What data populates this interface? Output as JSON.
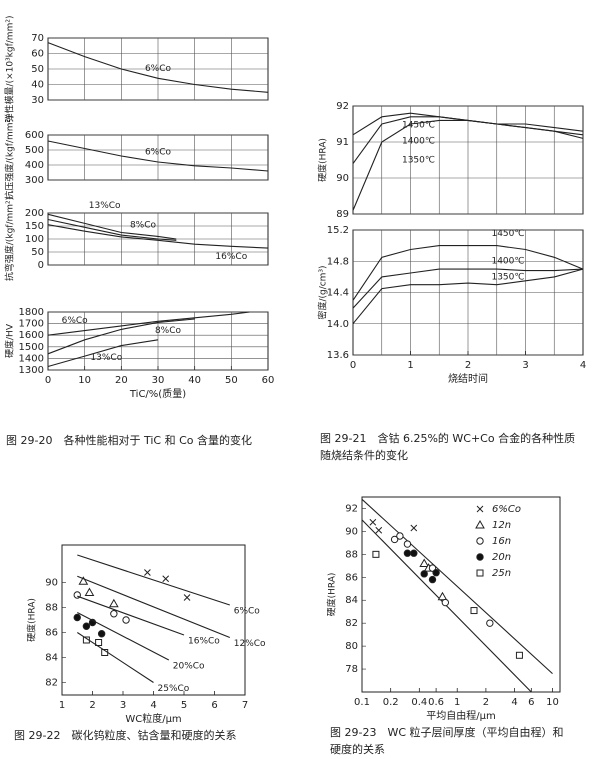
{
  "chart_data": [
    {
      "type": "line",
      "ylabel": "弹性模量/(×10³kgf/mm²)",
      "xlim": [
        0,
        60
      ],
      "ylim": [
        30,
        70
      ],
      "yticks": [
        30,
        40,
        50,
        60,
        70
      ],
      "grid": true,
      "series": [
        {
          "name": "6%Co",
          "color": "#222",
          "x": [
            0,
            10,
            20,
            30,
            40,
            50,
            60
          ],
          "values": [
            67,
            58,
            50,
            44,
            40,
            37,
            35
          ]
        }
      ]
    },
    {
      "type": "line",
      "ylabel": "抗压强度/(kgf/mm²)",
      "xlim": [
        0,
        60
      ],
      "ylim": [
        300,
        600
      ],
      "yticks": [
        300,
        400,
        500,
        600
      ],
      "grid": true,
      "series": [
        {
          "name": "6%Co",
          "color": "#222",
          "x": [
            0,
            10,
            20,
            30,
            40,
            50,
            60
          ],
          "values": [
            560,
            510,
            460,
            420,
            395,
            380,
            360
          ]
        }
      ]
    },
    {
      "type": "line",
      "ylabel": "抗弯强度/(kgf/mm²)",
      "xlim": [
        0,
        60
      ],
      "ylim": [
        0,
        200
      ],
      "yticks": [
        0,
        50,
        100,
        150,
        200
      ],
      "grid": true,
      "series": [
        {
          "name": "13%Co",
          "color": "#222",
          "x": [
            0,
            10,
            20,
            30,
            35
          ],
          "values": [
            195,
            160,
            125,
            110,
            100
          ]
        },
        {
          "name": "8%Co",
          "color": "#222",
          "x": [
            0,
            10,
            20,
            30,
            35
          ],
          "values": [
            175,
            145,
            115,
            100,
            95
          ]
        },
        {
          "name": "16%Co",
          "color": "#222",
          "x": [
            0,
            10,
            20,
            30,
            40,
            50,
            60
          ],
          "values": [
            155,
            130,
            108,
            95,
            80,
            72,
            65
          ]
        }
      ]
    },
    {
      "type": "line",
      "ylabel": "硬度/HV",
      "xlabel": "TiC/%(质量)",
      "xlim": [
        0,
        60
      ],
      "xticks": [
        0,
        10,
        20,
        30,
        40,
        50,
        60
      ],
      "ylim": [
        1300,
        1800
      ],
      "yticks": [
        1300,
        1400,
        1500,
        1600,
        1700,
        1800
      ],
      "grid": true,
      "caption": "图 29-20　各种性能相对于 TiC 和 Co 含量的变化",
      "series": [
        {
          "name": "6%Co",
          "color": "#222",
          "x": [
            0,
            10,
            20,
            30,
            40,
            50,
            55
          ],
          "values": [
            1600,
            1640,
            1680,
            1720,
            1750,
            1780,
            1800
          ]
        },
        {
          "name": "8%Co",
          "color": "#222",
          "x": [
            0,
            10,
            20,
            30,
            40
          ],
          "values": [
            1440,
            1560,
            1650,
            1710,
            1740
          ]
        },
        {
          "name": "13%Co",
          "color": "#222",
          "x": [
            0,
            10,
            20,
            30
          ],
          "values": [
            1330,
            1420,
            1510,
            1560
          ]
        }
      ]
    },
    {
      "type": "line",
      "ylabel": "硬度(HRA)",
      "xlim": [
        0,
        4
      ],
      "ylim": [
        89,
        92
      ],
      "yticks": [
        89,
        90,
        91,
        92
      ],
      "grid": true,
      "series": [
        {
          "name": "1450℃",
          "color": "#222",
          "x": [
            0,
            0.5,
            1,
            1.5,
            2,
            2.5,
            3,
            3.5,
            4
          ],
          "values": [
            91.2,
            91.7,
            91.8,
            91.7,
            91.6,
            91.5,
            91.4,
            91.3,
            91.1
          ]
        },
        {
          "name": "1400℃",
          "color": "#222",
          "x": [
            0,
            0.5,
            1,
            1.5,
            2,
            2.5,
            3,
            3.5,
            4
          ],
          "values": [
            90.4,
            91.5,
            91.7,
            91.7,
            91.6,
            91.5,
            91.4,
            91.3,
            91.2
          ]
        },
        {
          "name": "1350℃",
          "color": "#222",
          "x": [
            0,
            0.5,
            1,
            1.5,
            2,
            2.5,
            3,
            3.5,
            4
          ],
          "values": [
            89.1,
            91.0,
            91.5,
            91.6,
            91.6,
            91.5,
            91.5,
            91.4,
            91.3
          ]
        }
      ]
    },
    {
      "type": "line",
      "ylabel": "密度/(g/cm³)",
      "xlabel": "烧结时间",
      "xlim": [
        0,
        4
      ],
      "xticks": [
        0,
        1,
        2,
        3,
        4
      ],
      "ylim": [
        13.6,
        15.2
      ],
      "yticks": [
        13.6,
        {
          "value": 14,
          "label": "14.0"
        },
        14.4,
        14.8,
        15.2
      ],
      "grid": true,
      "caption": "图 29-21　含钴 6.25%的 WC+Co 合金的各种性质随烧结条件的变化",
      "series": [
        {
          "name": "1450℃",
          "color": "#222",
          "x": [
            0,
            0.5,
            1,
            1.5,
            2,
            2.5,
            3,
            3.5,
            4
          ],
          "values": [
            14.3,
            14.85,
            14.95,
            15.0,
            15.0,
            15.0,
            14.95,
            14.85,
            14.7
          ]
        },
        {
          "name": "1400℃",
          "color": "#222",
          "x": [
            0,
            0.5,
            1,
            1.5,
            2,
            2.5,
            3,
            3.5,
            4
          ],
          "values": [
            14.2,
            14.6,
            14.65,
            14.7,
            14.7,
            14.7,
            14.68,
            14.68,
            14.7
          ]
        },
        {
          "name": "1350℃",
          "color": "#222",
          "x": [
            0,
            0.5,
            1,
            1.5,
            2,
            2.5,
            3,
            3.5,
            4
          ],
          "values": [
            14.0,
            14.45,
            14.5,
            14.5,
            14.52,
            14.5,
            14.55,
            14.6,
            14.7
          ]
        }
      ]
    },
    {
      "type": "scatter",
      "ylabel": "硬度(HRA)",
      "xlabel": "WC粒度/μm",
      "xlim": [
        1,
        7
      ],
      "xticks": [
        1,
        2,
        3,
        4,
        5,
        6,
        7
      ],
      "ylim": [
        81,
        93
      ],
      "yticks": [
        82,
        84,
        86,
        88,
        90
      ],
      "grid": false,
      "caption": "图 29-22　碳化钨粒度、钴含量和硬度的关系",
      "series": [
        {
          "name": "6%Co",
          "marker": "x",
          "color": "#222",
          "x": [
            3.8,
            4.4,
            5.1
          ],
          "values": [
            90.8,
            90.3,
            88.8
          ],
          "fit": {
            "x": [
              1.5,
              6.5
            ],
            "values": [
              92.2,
              88.2
            ]
          }
        },
        {
          "name": "12%Co",
          "marker": "triangle",
          "color": "#222",
          "x": [
            1.7,
            1.9,
            2.7
          ],
          "values": [
            90.1,
            89.2,
            88.3
          ],
          "fit": {
            "x": [
              1.5,
              6.5
            ],
            "values": [
              90.5,
              85.6
            ]
          }
        },
        {
          "name": "16%Co",
          "marker": "circle",
          "color": "#222",
          "x": [
            1.5,
            2.7,
            3.1
          ],
          "values": [
            89,
            87.5,
            87
          ],
          "fit": {
            "x": [
              1.5,
              5
            ],
            "values": [
              88.9,
              85.8
            ]
          }
        },
        {
          "name": "20%Co",
          "marker": "dot",
          "color": "#222",
          "x": [
            1.5,
            1.8,
            2,
            2.3
          ],
          "values": [
            87.2,
            86.5,
            86.8,
            85.9
          ],
          "fit": {
            "x": [
              1.5,
              4.5
            ],
            "values": [
              87.6,
              83.8
            ]
          }
        },
        {
          "name": "25%Co",
          "marker": "square",
          "color": "#222",
          "x": [
            1.8,
            2.2,
            2.4
          ],
          "values": [
            85.4,
            85.2,
            84.4
          ],
          "fit": {
            "x": [
              1.5,
              4
            ],
            "values": [
              86,
              82
            ]
          }
        }
      ]
    },
    {
      "type": "scatter",
      "log_x": true,
      "ylabel": "硬度(HRA)",
      "xlabel": "平均自由程/μm",
      "xlim": [
        0.1,
        12
      ],
      "xticks": [
        0.1,
        0.2,
        0.4,
        0.6,
        1,
        2,
        4,
        6,
        10
      ],
      "ylim": [
        76,
        93
      ],
      "yticks": [
        78,
        80,
        82,
        84,
        86,
        88,
        90,
        92
      ],
      "grid": false,
      "legend": "upper right",
      "caption": "图 29-23　WC 粒子层间厚度（平均自由程）和硬度的关系",
      "bounds": [
        {
          "x": [
            0.1,
            10
          ],
          "values": [
            92.8,
            77.6
          ]
        },
        {
          "x": [
            0.1,
            6
          ],
          "values": [
            91,
            76
          ]
        }
      ],
      "series": [
        {
          "name": "6%Co",
          "marker": "x",
          "color": "#222",
          "x": [
            0.13,
            0.15,
            0.35
          ],
          "values": [
            90.8,
            90.1,
            90.3
          ]
        },
        {
          "name": "12n",
          "marker": "triangle",
          "color": "#222",
          "x": [
            0.45,
            0.5,
            0.7
          ],
          "values": [
            87.2,
            86.8,
            84.3
          ]
        },
        {
          "name": "16n",
          "marker": "circle",
          "color": "#222",
          "x": [
            0.22,
            0.25,
            0.3,
            0.55,
            0.75,
            2.2
          ],
          "values": [
            89.3,
            89.6,
            88.9,
            86.8,
            83.8,
            82.0
          ]
        },
        {
          "name": "20n",
          "marker": "dot",
          "color": "#222",
          "x": [
            0.3,
            0.35,
            0.45,
            0.55,
            0.6
          ],
          "values": [
            88.1,
            88.1,
            86.3,
            85.8,
            86.4
          ]
        },
        {
          "name": "25n",
          "marker": "square",
          "color": "#222",
          "x": [
            0.14,
            1.5,
            4.5
          ],
          "values": [
            88.0,
            83.1,
            79.2
          ]
        }
      ]
    }
  ]
}
